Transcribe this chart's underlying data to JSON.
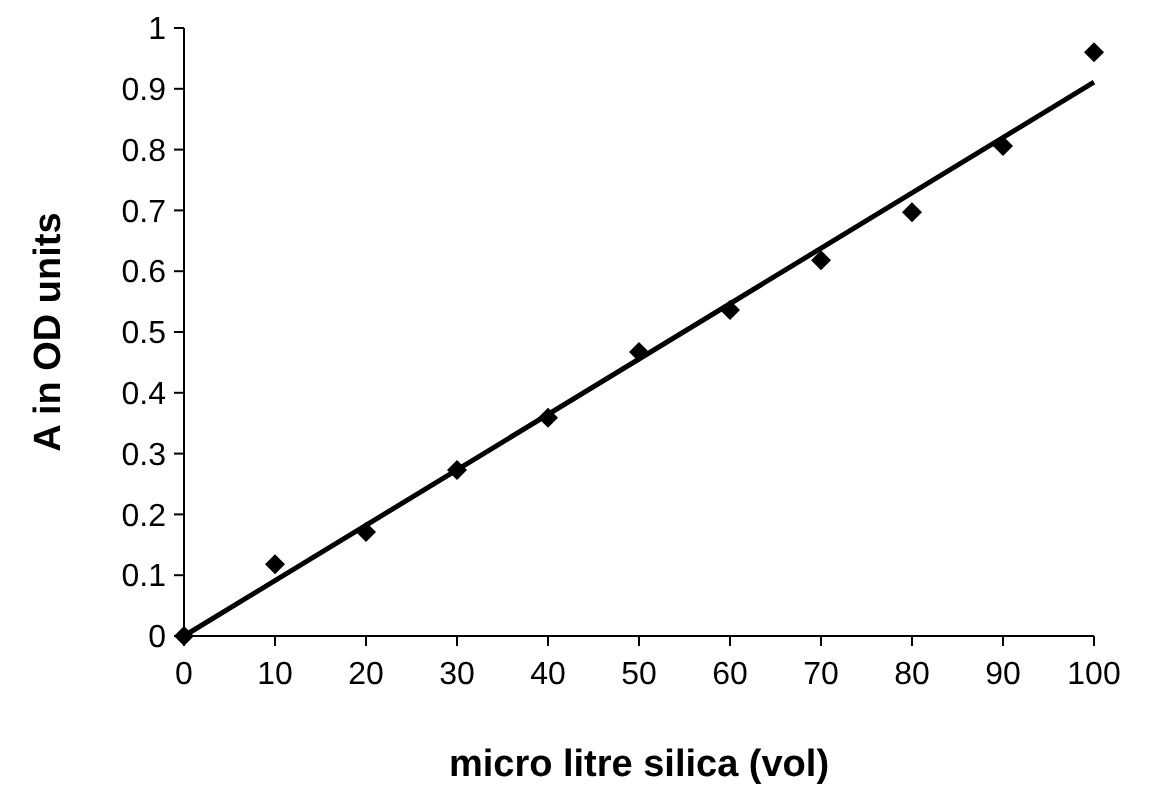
{
  "chart_data": {
    "type": "scatter",
    "xlabel": "micro litre silica (vol)",
    "ylabel": "A in OD units",
    "xlim": [
      0,
      100
    ],
    "xticks": [
      0,
      10,
      20,
      30,
      40,
      50,
      60,
      70,
      80,
      90,
      100
    ],
    "ylim": [
      0,
      1
    ],
    "yticks": [
      0,
      0.1,
      0.2,
      0.3,
      0.4,
      0.5,
      0.6,
      0.7,
      0.8,
      0.9,
      1
    ],
    "grid": false,
    "series": [
      {
        "color": "#000000",
        "marker": "diamond",
        "x": [
          0,
          10,
          20,
          30,
          40,
          50,
          60,
          70,
          80,
          90,
          100
        ],
        "values": [
          0,
          0.118,
          0.171,
          0.273,
          0.359,
          0.467,
          0.536,
          0.618,
          0.697,
          0.806,
          0.96
        ]
      },
      {
        "type": "line",
        "color": "#000000",
        "marker": "none",
        "line_style": "solid",
        "x": [
          0,
          100
        ],
        "values": [
          0,
          0.911
        ]
      }
    ]
  }
}
